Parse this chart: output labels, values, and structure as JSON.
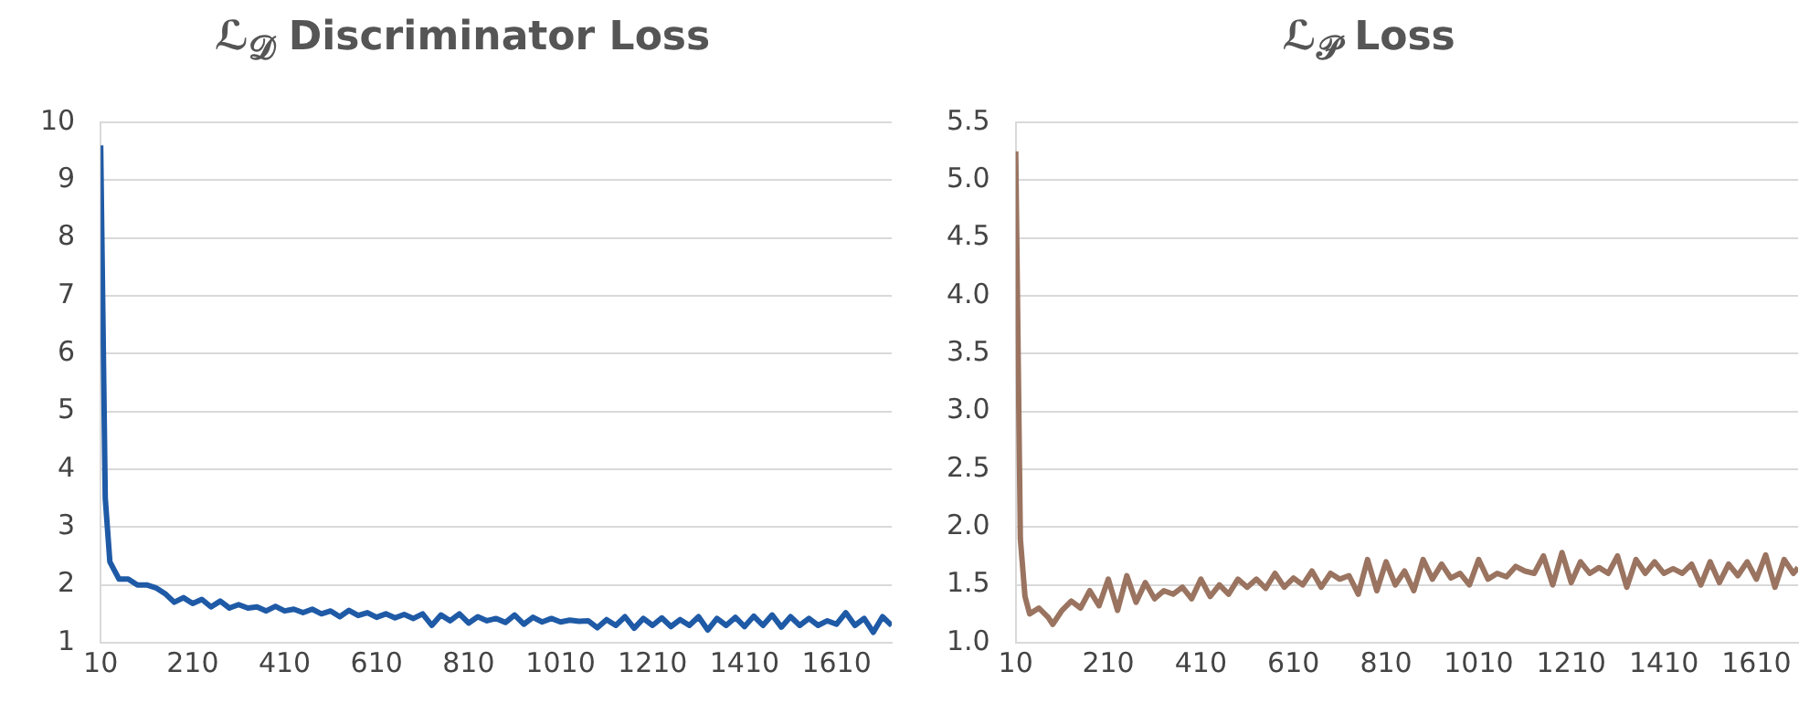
{
  "chart_data": [
    {
      "type": "line",
      "title": "ℒ$_{𝒟}$ Discriminator Loss",
      "grid": "y",
      "marker": "none",
      "xlim": [
        10,
        1730
      ],
      "xticks": [
        10,
        210,
        410,
        610,
        810,
        1010,
        1210,
        1410,
        1610
      ],
      "ylim": [
        1,
        10
      ],
      "yticks": [
        1,
        2,
        3,
        4,
        5,
        6,
        7,
        8,
        9,
        10
      ],
      "x": [
        10,
        20,
        30,
        50,
        70,
        90,
        110,
        130,
        150,
        170,
        190,
        210,
        230,
        250,
        270,
        290,
        310,
        330,
        350,
        370,
        390,
        410,
        430,
        450,
        470,
        490,
        510,
        530,
        550,
        570,
        590,
        610,
        630,
        650,
        670,
        690,
        710,
        730,
        750,
        770,
        790,
        810,
        830,
        850,
        870,
        890,
        910,
        930,
        950,
        970,
        990,
        1010,
        1030,
        1050,
        1070,
        1090,
        1110,
        1130,
        1150,
        1170,
        1190,
        1210,
        1230,
        1250,
        1270,
        1290,
        1310,
        1330,
        1350,
        1370,
        1390,
        1410,
        1430,
        1450,
        1470,
        1490,
        1510,
        1530,
        1550,
        1570,
        1590,
        1610,
        1630,
        1650,
        1670,
        1690,
        1710,
        1730
      ],
      "series": [
        {
          "color": "#1f5aa6",
          "values": [
            9.6,
            3.5,
            2.4,
            2.1,
            2.1,
            2.0,
            2.0,
            1.95,
            1.85,
            1.7,
            1.78,
            1.68,
            1.75,
            1.62,
            1.72,
            1.6,
            1.66,
            1.6,
            1.62,
            1.55,
            1.63,
            1.55,
            1.58,
            1.52,
            1.58,
            1.5,
            1.55,
            1.45,
            1.56,
            1.47,
            1.52,
            1.44,
            1.5,
            1.43,
            1.49,
            1.42,
            1.5,
            1.3,
            1.48,
            1.38,
            1.5,
            1.34,
            1.45,
            1.38,
            1.42,
            1.35,
            1.48,
            1.32,
            1.44,
            1.36,
            1.42,
            1.36,
            1.39,
            1.37,
            1.38,
            1.26,
            1.4,
            1.3,
            1.45,
            1.25,
            1.42,
            1.3,
            1.43,
            1.28,
            1.4,
            1.3,
            1.45,
            1.22,
            1.42,
            1.3,
            1.44,
            1.28,
            1.46,
            1.3,
            1.48,
            1.27,
            1.45,
            1.3,
            1.42,
            1.3,
            1.38,
            1.32,
            1.52,
            1.3,
            1.42,
            1.18,
            1.45,
            1.3
          ]
        }
      ]
    },
    {
      "type": "line",
      "title": "ℒ$_{𝒫}$ Loss",
      "grid": "y",
      "marker": "none",
      "xlim": [
        10,
        1700
      ],
      "xticks": [
        10,
        210,
        410,
        610,
        810,
        1010,
        1210,
        1410,
        1610
      ],
      "ylim": [
        1,
        5.5
      ],
      "yticks": [
        {
          "value": 1,
          "label": "1.0"
        },
        1.5,
        {
          "value": 2,
          "label": "2.0"
        },
        2.5,
        {
          "value": 3,
          "label": "3.0"
        },
        3.5,
        {
          "value": 4,
          "label": "4.0"
        },
        4.5,
        {
          "value": 5,
          "label": "5.0"
        },
        5.5
      ],
      "x": [
        10,
        20,
        30,
        40,
        60,
        80,
        90,
        110,
        130,
        150,
        170,
        190,
        210,
        230,
        250,
        270,
        290,
        310,
        330,
        350,
        370,
        390,
        410,
        430,
        450,
        470,
        490,
        510,
        530,
        550,
        570,
        590,
        610,
        630,
        650,
        670,
        690,
        710,
        730,
        750,
        770,
        790,
        810,
        830,
        850,
        870,
        890,
        910,
        930,
        950,
        970,
        990,
        1010,
        1030,
        1050,
        1070,
        1090,
        1110,
        1130,
        1150,
        1170,
        1190,
        1210,
        1230,
        1250,
        1270,
        1290,
        1310,
        1330,
        1350,
        1370,
        1390,
        1410,
        1430,
        1450,
        1470,
        1490,
        1510,
        1530,
        1550,
        1570,
        1590,
        1610,
        1630,
        1650,
        1670,
        1690,
        1700
      ],
      "series": [
        {
          "color": "#9a7460",
          "values": [
            5.25,
            1.9,
            1.4,
            1.25,
            1.3,
            1.22,
            1.16,
            1.28,
            1.36,
            1.3,
            1.45,
            1.32,
            1.55,
            1.28,
            1.58,
            1.35,
            1.52,
            1.38,
            1.45,
            1.42,
            1.48,
            1.38,
            1.55,
            1.4,
            1.5,
            1.42,
            1.55,
            1.48,
            1.55,
            1.47,
            1.6,
            1.48,
            1.56,
            1.5,
            1.62,
            1.48,
            1.6,
            1.55,
            1.58,
            1.42,
            1.72,
            1.45,
            1.7,
            1.5,
            1.62,
            1.45,
            1.72,
            1.55,
            1.68,
            1.56,
            1.6,
            1.5,
            1.72,
            1.55,
            1.6,
            1.57,
            1.66,
            1.62,
            1.6,
            1.75,
            1.5,
            1.78,
            1.52,
            1.7,
            1.6,
            1.65,
            1.6,
            1.75,
            1.48,
            1.72,
            1.6,
            1.7,
            1.6,
            1.64,
            1.6,
            1.68,
            1.5,
            1.7,
            1.52,
            1.68,
            1.58,
            1.7,
            1.55,
            1.76,
            1.48,
            1.72,
            1.6,
            1.65
          ]
        }
      ]
    }
  ]
}
